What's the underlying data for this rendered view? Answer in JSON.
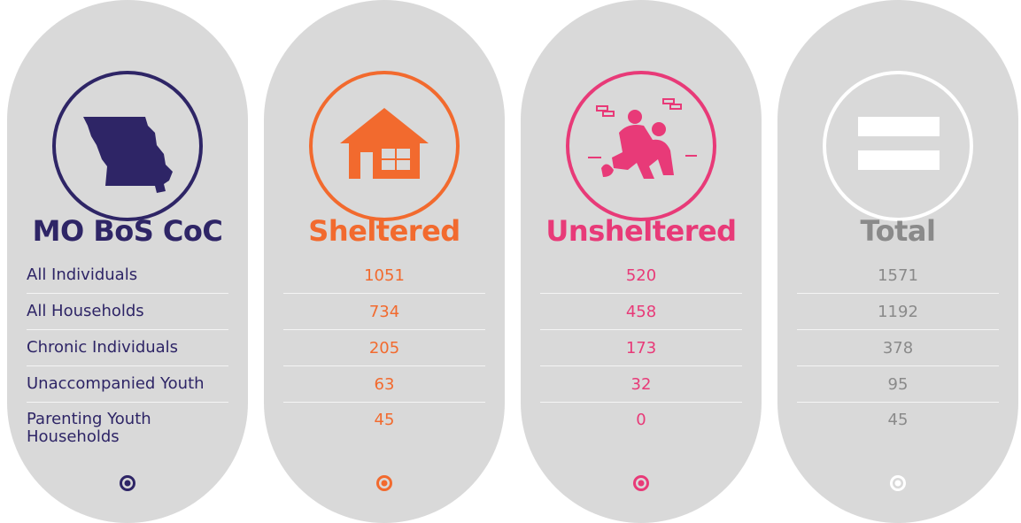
{
  "columns": [
    {
      "title": "MO BoS CoC",
      "color": "#2e2566",
      "rows": [
        "All Individuals",
        "All Households",
        "Chronic Individuals",
        "Unaccompanied Youth",
        "Parenting Youth Households"
      ]
    },
    {
      "title": "Sheltered",
      "color": "#f26a2e",
      "rows": [
        1051,
        734,
        205,
        63,
        45
      ]
    },
    {
      "title": "Unsheltered",
      "color": "#e83a78",
      "rows": [
        520,
        458,
        173,
        32,
        0
      ]
    },
    {
      "title": "Total",
      "color": "#8a8a8a",
      "rows": [
        1571,
        1192,
        378,
        95,
        45
      ]
    }
  ]
}
